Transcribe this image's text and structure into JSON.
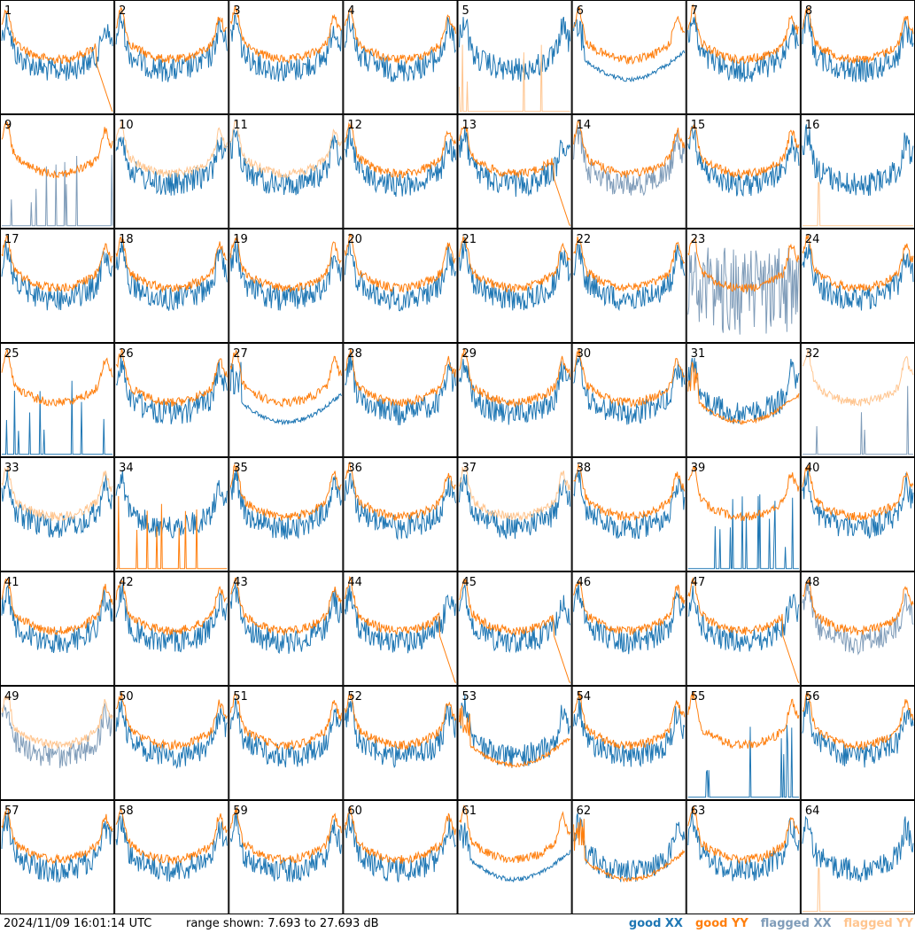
{
  "colors": {
    "good_xx": "#1f77b4",
    "good_yy": "#ff7f0e",
    "flagged_xx": "#7f9cb9",
    "flagged_yy": "#ffc58f",
    "grid_line": "#000000"
  },
  "footer": {
    "timestamp": "2024/11/09 16:01:14 UTC",
    "range_text": "range shown: 7.693 to 27.693 dB"
  },
  "chart_data": {
    "type": "line",
    "layout": "small-multiples 8x8",
    "ylim": [
      7.693,
      27.693
    ],
    "yunit": "dB",
    "legend_position": "bottom-right",
    "legend": [
      {
        "label": "good XX",
        "key": "good_xx"
      },
      {
        "label": "good YY",
        "key": "good_yy"
      },
      {
        "label": "flagged XX",
        "key": "flagged_xx"
      },
      {
        "label": "flagged YY",
        "key": "flagged_yy"
      }
    ],
    "panels": [
      {
        "id": "1",
        "xx": "good",
        "yy": "good",
        "yy_shape": "dropend",
        "xx_shape": "normal"
      },
      {
        "id": "2",
        "xx": "good",
        "yy": "good"
      },
      {
        "id": "3",
        "xx": "good",
        "yy": "good"
      },
      {
        "id": "4",
        "xx": "good",
        "yy": "good"
      },
      {
        "id": "5",
        "xx": "good",
        "yy": "flagged",
        "yy_shape": "spikes"
      },
      {
        "id": "6",
        "xx": "good",
        "yy": "good",
        "xx_shape": "dip"
      },
      {
        "id": "7",
        "xx": "good",
        "yy": "good"
      },
      {
        "id": "8",
        "xx": "good",
        "yy": "good"
      },
      {
        "id": "9",
        "xx": "flagged",
        "yy": "good",
        "xx_shape": "spikes"
      },
      {
        "id": "10",
        "xx": "good",
        "yy": "flagged"
      },
      {
        "id": "11",
        "xx": "good",
        "yy": "flagged"
      },
      {
        "id": "12",
        "xx": "good",
        "yy": "good"
      },
      {
        "id": "13",
        "xx": "good",
        "yy": "good",
        "yy_shape": "dropend"
      },
      {
        "id": "14",
        "xx": "flagged",
        "yy": "good"
      },
      {
        "id": "15",
        "xx": "good",
        "yy": "good"
      },
      {
        "id": "16",
        "xx": "good",
        "yy": "flagged",
        "yy_shape": "flat"
      },
      {
        "id": "17",
        "xx": "good",
        "yy": "good"
      },
      {
        "id": "18",
        "xx": "good",
        "yy": "good"
      },
      {
        "id": "19",
        "xx": "good",
        "yy": "good"
      },
      {
        "id": "20",
        "xx": "good",
        "yy": "good"
      },
      {
        "id": "21",
        "xx": "good",
        "yy": "good"
      },
      {
        "id": "22",
        "xx": "good",
        "yy": "good"
      },
      {
        "id": "23",
        "xx": "flagged",
        "yy": "good",
        "xx_shape": "noisy"
      },
      {
        "id": "24",
        "xx": "good",
        "yy": "good"
      },
      {
        "id": "25",
        "xx": "good",
        "yy": "good",
        "xx_shape": "spikes"
      },
      {
        "id": "26",
        "xx": "good",
        "yy": "good"
      },
      {
        "id": "27",
        "xx": "good",
        "yy": "good",
        "xx_shape": "dip"
      },
      {
        "id": "28",
        "xx": "good",
        "yy": "good"
      },
      {
        "id": "29",
        "xx": "good",
        "yy": "good"
      },
      {
        "id": "30",
        "xx": "good",
        "yy": "good"
      },
      {
        "id": "31",
        "xx": "good",
        "yy": "good",
        "yy_shape": "dip"
      },
      {
        "id": "32",
        "xx": "flagged",
        "yy": "flagged",
        "xx_shape": "spikes"
      },
      {
        "id": "33",
        "xx": "good",
        "yy": "flagged"
      },
      {
        "id": "34",
        "xx": "good",
        "yy": "good",
        "yy_shape": "spikes"
      },
      {
        "id": "35",
        "xx": "good",
        "yy": "good"
      },
      {
        "id": "36",
        "xx": "good",
        "yy": "good"
      },
      {
        "id": "37",
        "xx": "good",
        "yy": "flagged"
      },
      {
        "id": "38",
        "xx": "good",
        "yy": "good"
      },
      {
        "id": "39",
        "xx": "good",
        "yy": "good",
        "xx_shape": "spikes"
      },
      {
        "id": "40",
        "xx": "good",
        "yy": "good"
      },
      {
        "id": "41",
        "xx": "good",
        "yy": "good"
      },
      {
        "id": "42",
        "xx": "good",
        "yy": "good"
      },
      {
        "id": "43",
        "xx": "good",
        "yy": "good"
      },
      {
        "id": "44",
        "xx": "good",
        "yy": "good",
        "yy_shape": "dropend"
      },
      {
        "id": "45",
        "xx": "good",
        "yy": "good",
        "yy_shape": "dropend"
      },
      {
        "id": "46",
        "xx": "good",
        "yy": "good"
      },
      {
        "id": "47",
        "xx": "good",
        "yy": "good",
        "yy_shape": "dropend"
      },
      {
        "id": "48",
        "xx": "flagged",
        "yy": "good"
      },
      {
        "id": "49",
        "xx": "flagged",
        "yy": "flagged"
      },
      {
        "id": "50",
        "xx": "good",
        "yy": "good"
      },
      {
        "id": "51",
        "xx": "good",
        "yy": "good"
      },
      {
        "id": "52",
        "xx": "good",
        "yy": "good"
      },
      {
        "id": "53",
        "xx": "good",
        "yy": "good",
        "yy_shape": "dip"
      },
      {
        "id": "54",
        "xx": "good",
        "yy": "good"
      },
      {
        "id": "55",
        "xx": "good",
        "yy": "good",
        "xx_shape": "spikes"
      },
      {
        "id": "56",
        "xx": "good",
        "yy": "good"
      },
      {
        "id": "57",
        "xx": "good",
        "yy": "good"
      },
      {
        "id": "58",
        "xx": "good",
        "yy": "good"
      },
      {
        "id": "59",
        "xx": "good",
        "yy": "good"
      },
      {
        "id": "60",
        "xx": "good",
        "yy": "good"
      },
      {
        "id": "61",
        "xx": "good",
        "yy": "good",
        "xx_shape": "dip"
      },
      {
        "id": "62",
        "xx": "good",
        "yy": "good",
        "yy_shape": "dip"
      },
      {
        "id": "63",
        "xx": "good",
        "yy": "good"
      },
      {
        "id": "64",
        "xx": "good",
        "yy": "flagged",
        "yy_shape": "flat"
      }
    ]
  }
}
